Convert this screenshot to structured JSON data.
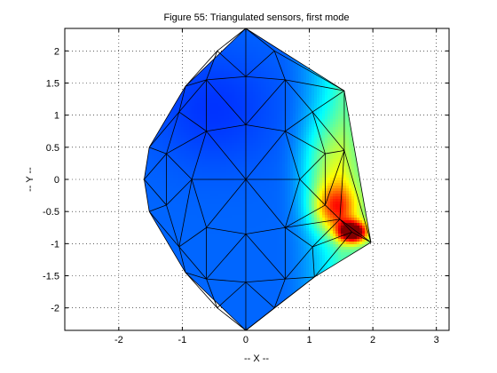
{
  "chart_data": {
    "type": "heatmap",
    "title": "Figure 55: Triangulated sensors, first mode",
    "xlabel": "-- X --",
    "ylabel": "-- Y --",
    "xlim": [
      -2.85,
      3.2
    ],
    "ylim": [
      -2.35,
      2.35
    ],
    "xticks": [
      -2,
      -1,
      0,
      1,
      2,
      3
    ],
    "yticks": [
      -2,
      -1.5,
      -1,
      -0.5,
      0,
      0.5,
      1,
      1.5,
      2
    ],
    "grid": true,
    "colormap": "jet",
    "colorscale": [
      {
        "v": 0.0,
        "c": "#00008f"
      },
      {
        "v": 0.12,
        "c": "#0000ff"
      },
      {
        "v": 0.37,
        "c": "#00ffff"
      },
      {
        "v": 0.62,
        "c": "#ffff00"
      },
      {
        "v": 0.87,
        "c": "#ff0000"
      },
      {
        "v": 1.0,
        "c": "#800000"
      }
    ],
    "hull": [
      [
        0.0,
        2.35
      ],
      [
        1.55,
        1.38
      ],
      [
        1.97,
        -0.98
      ],
      [
        1.08,
        -1.52
      ],
      [
        0.0,
        -2.35
      ],
      [
        -0.95,
        -1.45
      ],
      [
        -1.52,
        -0.5
      ],
      [
        -1.6,
        0.0
      ],
      [
        -1.52,
        0.5
      ],
      [
        -0.95,
        1.45
      ]
    ],
    "nodes": [
      [
        0.0,
        2.35
      ],
      [
        1.55,
        1.38
      ],
      [
        1.97,
        -0.98
      ],
      [
        1.08,
        -1.52
      ],
      [
        0.0,
        -2.35
      ],
      [
        -0.95,
        -1.45
      ],
      [
        -1.52,
        -0.5
      ],
      [
        -1.6,
        0.0
      ],
      [
        -1.52,
        0.5
      ],
      [
        -0.95,
        1.45
      ],
      [
        0.0,
        0.0
      ],
      [
        0.0,
        0.85
      ],
      [
        0.0,
        1.6
      ],
      [
        0.0,
        -0.85
      ],
      [
        0.0,
        -1.6
      ],
      [
        0.62,
        0.75
      ],
      [
        0.62,
        1.55
      ],
      [
        0.62,
        -0.75
      ],
      [
        0.62,
        -1.55
      ],
      [
        -0.62,
        0.75
      ],
      [
        -0.62,
        1.55
      ],
      [
        -0.62,
        -0.75
      ],
      [
        -0.62,
        -1.55
      ],
      [
        0.85,
        0.0
      ],
      [
        -0.85,
        0.0
      ],
      [
        1.25,
        0.4
      ],
      [
        1.25,
        -0.4
      ],
      [
        -1.25,
        0.4
      ],
      [
        -1.25,
        -0.4
      ],
      [
        1.48,
        -0.62
      ],
      [
        1.67,
        -0.82
      ],
      [
        1.05,
        1.05
      ],
      [
        -1.05,
        1.05
      ],
      [
        1.05,
        -1.05
      ],
      [
        -1.05,
        -1.05
      ],
      [
        1.55,
        0.45
      ],
      [
        0.45,
        2.0
      ],
      [
        -0.45,
        2.0
      ],
      [
        0.45,
        -2.0
      ],
      [
        -0.45,
        -2.0
      ]
    ],
    "triangles": [
      [
        0,
        12,
        36
      ],
      [
        0,
        37,
        12
      ],
      [
        12,
        16,
        36
      ],
      [
        12,
        37,
        20
      ],
      [
        12,
        11,
        16
      ],
      [
        12,
        20,
        11
      ],
      [
        0,
        36,
        1
      ],
      [
        36,
        16,
        1
      ],
      [
        16,
        31,
        1
      ],
      [
        16,
        15,
        31
      ],
      [
        11,
        15,
        16
      ],
      [
        11,
        10,
        15
      ],
      [
        11,
        19,
        10
      ],
      [
        11,
        20,
        19
      ],
      [
        20,
        32,
        19
      ],
      [
        20,
        9,
        32
      ],
      [
        37,
        9,
        20
      ],
      [
        0,
        9,
        37
      ],
      [
        10,
        23,
        15
      ],
      [
        15,
        23,
        25
      ],
      [
        15,
        25,
        31
      ],
      [
        31,
        25,
        35
      ],
      [
        31,
        35,
        1
      ],
      [
        1,
        35,
        2
      ],
      [
        35,
        29,
        2
      ],
      [
        35,
        26,
        29
      ],
      [
        25,
        26,
        35
      ],
      [
        23,
        26,
        25
      ],
      [
        10,
        17,
        23
      ],
      [
        23,
        17,
        26
      ],
      [
        26,
        17,
        29
      ],
      [
        29,
        17,
        33
      ],
      [
        29,
        33,
        30
      ],
      [
        29,
        30,
        2
      ],
      [
        30,
        33,
        3
      ],
      [
        30,
        3,
        2
      ],
      [
        17,
        18,
        33
      ],
      [
        33,
        18,
        3
      ],
      [
        17,
        13,
        18
      ],
      [
        10,
        13,
        17
      ],
      [
        13,
        14,
        18
      ],
      [
        14,
        38,
        18
      ],
      [
        18,
        38,
        3
      ],
      [
        38,
        4,
        3
      ],
      [
        14,
        4,
        38
      ],
      [
        14,
        39,
        4
      ],
      [
        22,
        39,
        14
      ],
      [
        13,
        22,
        14
      ],
      [
        13,
        21,
        22
      ],
      [
        10,
        21,
        13
      ],
      [
        10,
        24,
        21
      ],
      [
        21,
        24,
        34
      ],
      [
        21,
        34,
        22
      ],
      [
        22,
        34,
        5
      ],
      [
        22,
        5,
        39
      ],
      [
        39,
        5,
        4
      ],
      [
        34,
        6,
        5
      ],
      [
        28,
        6,
        34
      ],
      [
        24,
        28,
        34
      ],
      [
        24,
        27,
        28
      ],
      [
        28,
        7,
        6
      ],
      [
        27,
        7,
        28
      ],
      [
        27,
        8,
        7
      ],
      [
        32,
        8,
        27
      ],
      [
        19,
        32,
        27
      ],
      [
        19,
        27,
        24
      ],
      [
        10,
        19,
        24
      ],
      [
        32,
        9,
        8
      ]
    ],
    "field": {
      "base": 0.22,
      "right_ramp": {
        "x_start": 0.45,
        "x_end": 1.5,
        "amount": 0.22
      },
      "peaks": [
        {
          "x": 1.68,
          "y": -0.82,
          "amp": 0.72,
          "sx": 0.22,
          "sy": 0.16
        },
        {
          "x": 1.4,
          "y": -0.45,
          "amp": 0.38,
          "sx": 0.35,
          "sy": 0.38
        },
        {
          "x": 1.3,
          "y": 0.2,
          "amp": 0.18,
          "sx": 0.4,
          "sy": 0.7
        }
      ],
      "upper_left_shade": {
        "x": -0.5,
        "y": 1.1,
        "amp": -0.05,
        "sx": 1.0,
        "sy": 0.9
      }
    }
  }
}
